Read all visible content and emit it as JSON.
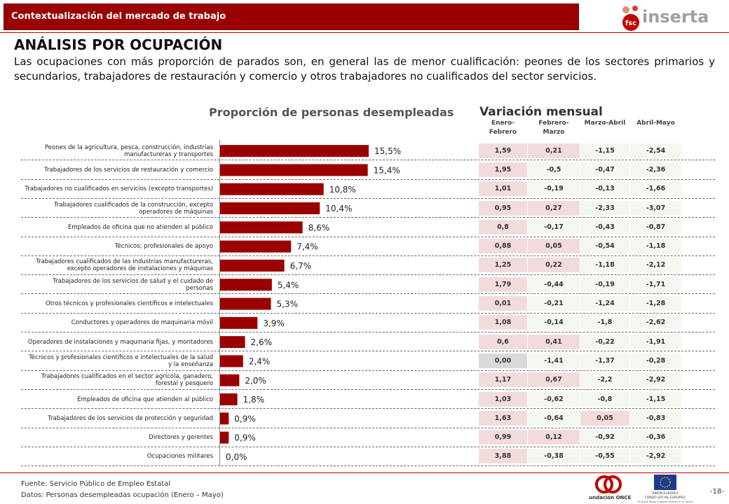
{
  "header": {
    "section": "Contextualización del mercado de trabajo",
    "logo_fsc": "fsc",
    "logo_name": "inserta"
  },
  "title": "ANÁLISIS POR OCUPACIÓN",
  "paragraph": "Las ocupaciones con más proporción de parados son, en general las de menor cualificación: peones de los sectores primarios y secundarios, trabajadores de restauración y comercio y otros trabajadores no cualificados del sector servicios.",
  "chart_data": {
    "type": "bar",
    "orientation": "horizontal",
    "title": "Proporción de personas desempleadas",
    "color": "#9b0000",
    "categories": [
      "Peones de la agricultura, pesca, construcción, industrias manufactureras y transportes",
      "Trabajadores de los servicios de restauración y comercio",
      "Trabajadores no cualificados en servicios (excepto transportes)",
      "Trabajadores cualificados de la construcción, excepto operadores de máquinas",
      "Empleados de oficina que no atienden al público",
      "Técnicos; profesionales de apoyo",
      "Trabajadores cualificados de las industrias manufactureras, excepto operadores de instalaciones y máquinas",
      "Trabajadores de los servicios de salud y el cuidado de personas",
      "Otros técnicos y profesionales científicos e intelectuales",
      "Conductores y operadores de maquinaria móvil",
      "Operadores de instalaciones y maquinaria fijas, y montadores",
      "Técnicos y profesionales científicos e intelectuales de la salud y la enseñanza",
      "Trabajadores cualificados en el sector agrícola, ganadero, forestal y pesquero",
      "Empleados de oficina que atienden al público",
      "Trabajadores de los servicios de protección y seguridad",
      "Directores y gerentes",
      "Ocupaciones militares"
    ],
    "values": [
      15.5,
      15.4,
      10.8,
      10.4,
      8.6,
      7.4,
      6.7,
      5.4,
      5.3,
      3.9,
      2.6,
      2.4,
      2.0,
      1.8,
      0.9,
      0.9,
      0.0
    ],
    "value_labels": [
      "15,5%",
      "15,4%",
      "10,8%",
      "10,4%",
      "8,6%",
      "7,4%",
      "6,7%",
      "5,4%",
      "5,3%",
      "3,9%",
      "2,6%",
      "2,4%",
      "2,0%",
      "1,8%",
      "0,9%",
      "0,9%",
      "0,0%"
    ]
  },
  "table": {
    "title": "Variación mensual",
    "columns": [
      "Enero-Febrero",
      "Febrero-Marzo",
      "Marzo-Abril",
      "Abril-Mayo"
    ],
    "rows": [
      [
        "1,59",
        "0,21",
        "-1,15",
        "-2,54"
      ],
      [
        "1,95",
        "-0,5",
        "-0,47",
        "-2,36"
      ],
      [
        "1,01",
        "-0,19",
        "-0,13",
        "-1,66"
      ],
      [
        "0,95",
        "0,27",
        "-2,33",
        "-3,07"
      ],
      [
        "0,8",
        "-0,17",
        "-0,43",
        "-0,87"
      ],
      [
        "0,88",
        "0,05",
        "-0,54",
        "-1,18"
      ],
      [
        "1,25",
        "0,22",
        "-1,18",
        "-2,12"
      ],
      [
        "1,79",
        "-0,44",
        "-0,19",
        "-1,71"
      ],
      [
        "0,01",
        "-0,21",
        "-1,24",
        "-1,28"
      ],
      [
        "1,08",
        "-0,14",
        "-1,8",
        "-2,62"
      ],
      [
        "0,6",
        "0,41",
        "-0,22",
        "-1,91"
      ],
      [
        "0,00",
        "-1,41",
        "-1,37",
        "-0,28"
      ],
      [
        "1,17",
        "0,67",
        "-2,2",
        "-2,92"
      ],
      [
        "1,03",
        "-0,62",
        "-0,8",
        "-1,15"
      ],
      [
        "1,63",
        "-0,64",
        "0,05",
        "-0,83"
      ],
      [
        "0,99",
        "0,12",
        "-0,92",
        "-0,36"
      ],
      [
        "3,88",
        "-0,38",
        "-0,55",
        "-2,92"
      ]
    ]
  },
  "footer": {
    "source": "Fuente: Servicio Público de Empleo Estatal",
    "data": "Datos: Personas desempleadas ocupación (Enero – Mayo)",
    "logo_once": "Fundación ONCE",
    "eu_name": "UNIÓN EUROPEA",
    "eu_fund": "FONDO SOCIAL EUROPEO",
    "eu_motto": "El Fondo Social Europeo invierte en tu futuro",
    "page": "-18-"
  }
}
